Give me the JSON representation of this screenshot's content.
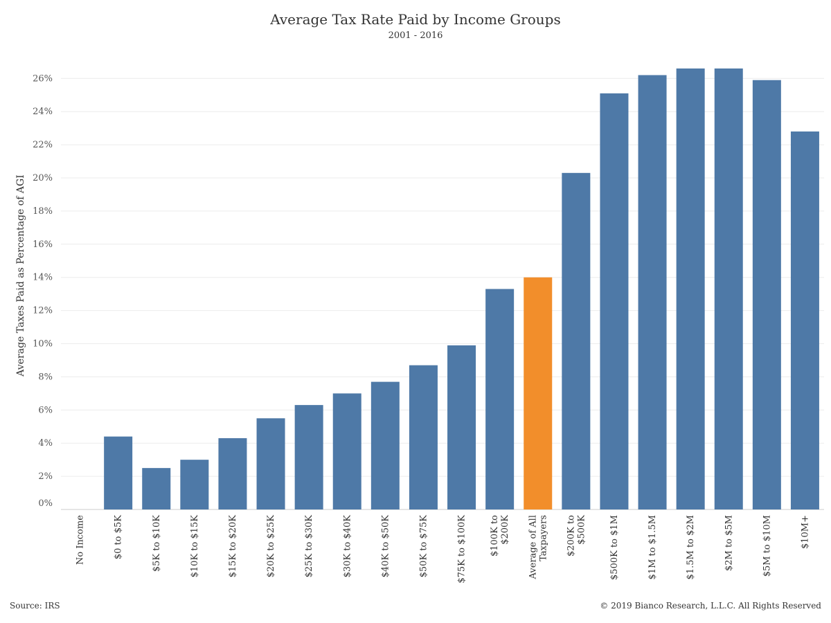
{
  "chart_data": {
    "type": "bar",
    "title": "Average Tax Rate Paid by Income Groups",
    "subtitle": "2001 - 2016",
    "ylabel": "Average Taxes Paid as Percentage of AGI",
    "xlabel": "",
    "ylim": [
      0,
      27
    ],
    "y_ticks": [
      "0%",
      "2%",
      "4%",
      "6%",
      "8%",
      "10%",
      "12%",
      "14%",
      "16%",
      "18%",
      "20%",
      "22%",
      "24%",
      "26%"
    ],
    "grid": "horizontal",
    "categories": [
      [
        "No Income"
      ],
      [
        "$0 to $5K"
      ],
      [
        "$5K to $10K"
      ],
      [
        "$10K to $15K"
      ],
      [
        "$15K to $20K"
      ],
      [
        "$20K to $25K"
      ],
      [
        "$25K to $30K"
      ],
      [
        "$30K to $40K"
      ],
      [
        "$40K to $50K"
      ],
      [
        "$50K to $75K"
      ],
      [
        "$75K to $100K"
      ],
      [
        "$100K to",
        "$200K"
      ],
      [
        "Average of All",
        "Taxpayers"
      ],
      [
        "$200K to",
        "$500K"
      ],
      [
        "$500K to $1M"
      ],
      [
        "$1M to $1.5M"
      ],
      [
        "$1.5M to $2M"
      ],
      [
        "$2M to $5M"
      ],
      [
        "$5M to $10M"
      ],
      [
        "$10M+"
      ]
    ],
    "values": [
      0,
      4.4,
      2.5,
      3.0,
      4.3,
      5.5,
      6.3,
      7.0,
      7.7,
      8.7,
      9.9,
      13.3,
      14.0,
      20.3,
      25.1,
      26.2,
      26.6,
      26.6,
      25.9,
      22.8
    ],
    "colors": {
      "default": "#4e79a7",
      "highlight": "#f28e2b",
      "highlight_category": "Average of All Taxpayers",
      "grid": "#ececec",
      "axis": "#cccccc"
    }
  },
  "footer": {
    "source": "Source: IRS",
    "copyright": "© 2019 Bianco Research, L.L.C. All Rights Reserved"
  }
}
